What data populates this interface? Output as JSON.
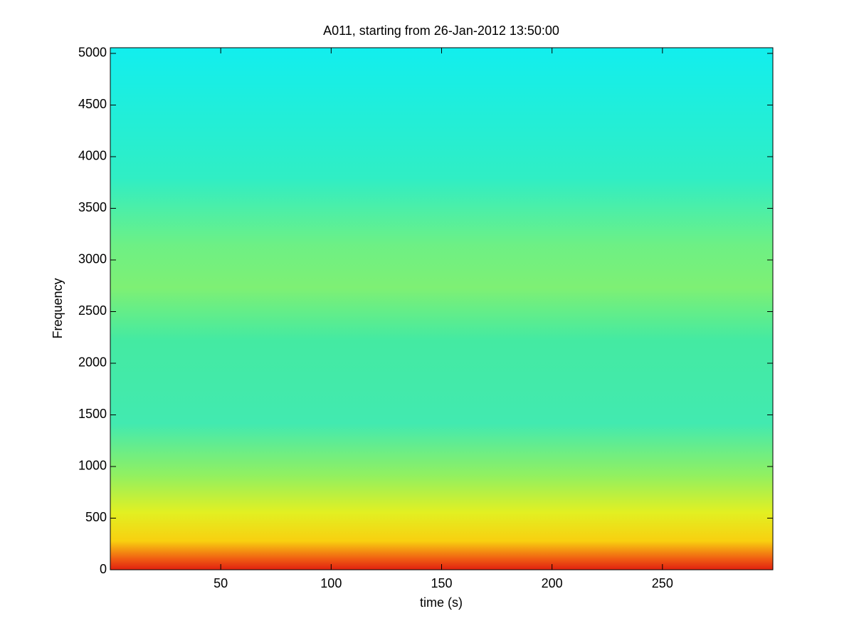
{
  "chart_data": {
    "type": "spectrogram",
    "title": "A011, starting from 26-Jan-2012 13:50:00",
    "xlabel": "time (s)",
    "ylabel": "Frequency",
    "xlim": [
      0,
      300
    ],
    "xticks": [
      50,
      100,
      150,
      200,
      250
    ],
    "ylim": [
      0,
      5055
    ],
    "yticks": [
      0,
      500,
      1000,
      1500,
      2000,
      2500,
      3000,
      3500,
      4000,
      4500,
      5000
    ],
    "grid": false
  }
}
